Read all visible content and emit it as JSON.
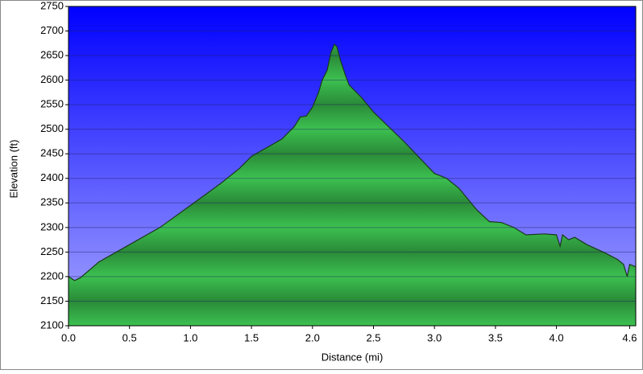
{
  "chart_data": {
    "type": "area",
    "x_label": "Distance (mi)",
    "y_label": "Elevation (ft)",
    "x": [
      0,
      0.05,
      0.1,
      0.25,
      0.5,
      0.75,
      1.0,
      1.25,
      1.4,
      1.5,
      1.75,
      1.85,
      1.9,
      1.95,
      2.0,
      2.05,
      2.08,
      2.12,
      2.15,
      2.18,
      2.2,
      2.23,
      2.27,
      2.3,
      2.4,
      2.5,
      2.75,
      3.0,
      3.05,
      3.1,
      3.2,
      3.35,
      3.45,
      3.55,
      3.65,
      3.75,
      3.9,
      4.0,
      4.03,
      4.05,
      4.1,
      4.15,
      4.25,
      4.4,
      4.5,
      4.55,
      4.58,
      4.6,
      4.65
    ],
    "values": [
      2200,
      2192,
      2198,
      2230,
      2265,
      2300,
      2345,
      2390,
      2420,
      2445,
      2480,
      2505,
      2525,
      2527,
      2545,
      2575,
      2600,
      2620,
      2655,
      2673,
      2668,
      2640,
      2610,
      2590,
      2565,
      2535,
      2475,
      2410,
      2405,
      2400,
      2380,
      2335,
      2312,
      2310,
      2300,
      2285,
      2287,
      2285,
      2262,
      2285,
      2275,
      2280,
      2265,
      2248,
      2235,
      2225,
      2200,
      2225,
      2220
    ],
    "color": "#22a038",
    "background_color": "#0000ff",
    "xlim": [
      0,
      4.65
    ],
    "ylim": [
      2100,
      2750
    ],
    "xticks": [
      {
        "value": 0,
        "label": "0.0"
      },
      0.5,
      {
        "value": 1,
        "label": "1.0"
      },
      1.5,
      {
        "value": 2,
        "label": "2.0"
      },
      2.5,
      {
        "value": 3,
        "label": "3.0"
      },
      3.5,
      {
        "value": 4,
        "label": "4.0"
      },
      4.6
    ],
    "yticks": [
      2100,
      2150,
      2200,
      2250,
      2300,
      2350,
      2400,
      2450,
      2500,
      2550,
      2600,
      2650,
      2700,
      2750
    ],
    "grid": true
  }
}
